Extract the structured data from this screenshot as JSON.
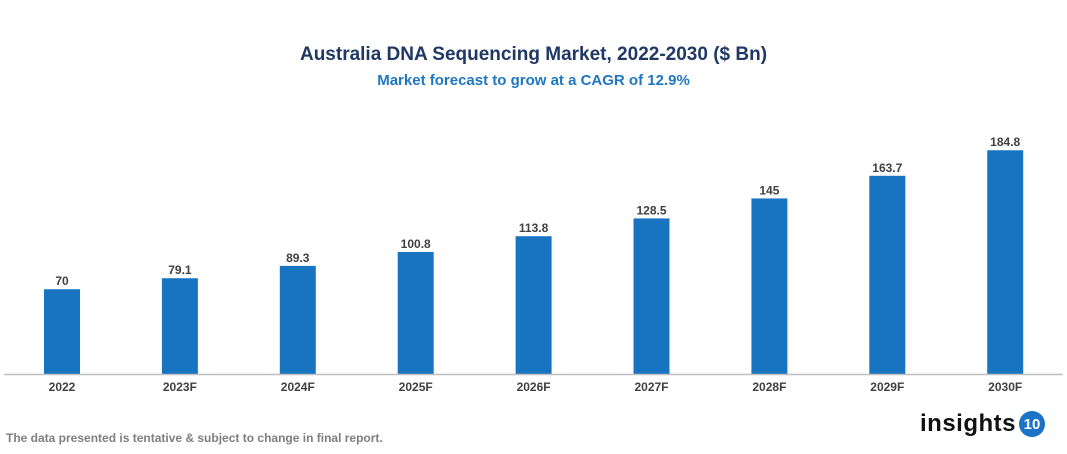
{
  "chart_data": {
    "type": "bar",
    "title": "Australia DNA Sequencing Market, 2022-2030 ($ Bn)",
    "subtitle": "Market forecast to grow at a CAGR of 12.9%",
    "categories": [
      "2022",
      "2023F",
      "2024F",
      "2025F",
      "2026F",
      "2027F",
      "2028F",
      "2029F",
      "2030F"
    ],
    "values": [
      70,
      79.1,
      89.3,
      100.8,
      113.8,
      128.5,
      145,
      163.7,
      184.8
    ],
    "value_labels": [
      "70",
      "79.1",
      "89.3",
      "100.8",
      "113.8",
      "128.5",
      "145",
      "163.7",
      "184.8"
    ],
    "xlabel": "",
    "ylabel": "",
    "ylim": [
      0,
      185
    ],
    "grid": false,
    "bar_color": "#1874c1"
  },
  "footer": {
    "note": "The data presented is tentative & subject to change in final report.",
    "logo_text": "insights",
    "logo_badge": "10"
  }
}
